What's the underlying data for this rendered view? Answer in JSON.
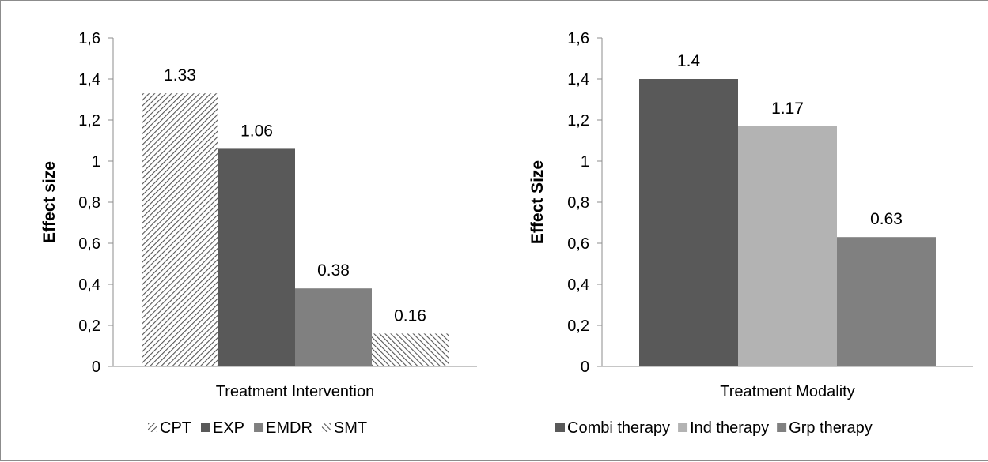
{
  "chart_data": [
    {
      "type": "bar",
      "xlabel": "Treatment Intervention",
      "ylabel": "Effect size",
      "ylim": [
        0,
        1.6
      ],
      "yticks": [
        "0",
        "0,2",
        "0,4",
        "0,6",
        "0,8",
        "1",
        "1,2",
        "1,4",
        "1,6"
      ],
      "legend_position": "bottom",
      "series": [
        {
          "name": "CPT",
          "value": 1.33,
          "label": "1.33",
          "fill": "hatch-diag",
          "color": "#555555"
        },
        {
          "name": "EXP",
          "value": 1.06,
          "label": "1.06",
          "fill": "solid",
          "color": "#595959"
        },
        {
          "name": "EMDR",
          "value": 0.38,
          "label": "0.38",
          "fill": "solid",
          "color": "#808080"
        },
        {
          "name": "SMT",
          "value": 0.16,
          "label": "0.16",
          "fill": "hatch-diag-rev",
          "color": "#555555"
        }
      ]
    },
    {
      "type": "bar",
      "xlabel": "Treatment Modality",
      "ylabel": "Effect Size",
      "ylim": [
        0,
        1.6
      ],
      "yticks": [
        "0",
        "0,2",
        "0,4",
        "0,6",
        "0,8",
        "1",
        "1,2",
        "1,4",
        "1,6"
      ],
      "legend_position": "bottom",
      "series": [
        {
          "name": "Combi therapy",
          "value": 1.4,
          "label": "1.4",
          "fill": "solid",
          "color": "#595959"
        },
        {
          "name": "Ind therapy",
          "value": 1.17,
          "label": "1.17",
          "fill": "solid",
          "color": "#b3b3b3"
        },
        {
          "name": "Grp therapy",
          "value": 0.63,
          "label": "0.63",
          "fill": "solid",
          "color": "#808080"
        }
      ]
    }
  ]
}
